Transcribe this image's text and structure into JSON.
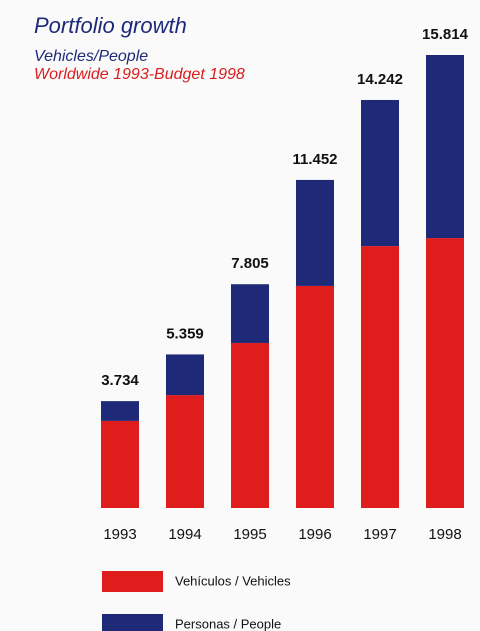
{
  "chart_data": {
    "type": "stacked_bar",
    "title": "Portfolio growth",
    "subtitle": "Vehicles/People",
    "subtitle2": "Worldwide 1993-Budget 1998",
    "categories": [
      "1993",
      "1994",
      "1995",
      "1996",
      "1997",
      "1998"
    ],
    "series": [
      {
        "name": "Vehículos / Vehicles",
        "color": "#e01d1d",
        "values": [
          3.04,
          3.94,
          5.76,
          7.75,
          9.14,
          9.42
        ]
      },
      {
        "name": "Personas / People",
        "color": "#1e2a78",
        "values": [
          0.69,
          1.42,
          2.05,
          3.7,
          5.1,
          6.39
        ]
      }
    ],
    "total_labels": [
      "3.734",
      "5.359",
      "7.805",
      "11.452",
      "14.242",
      "15.814"
    ]
  }
}
